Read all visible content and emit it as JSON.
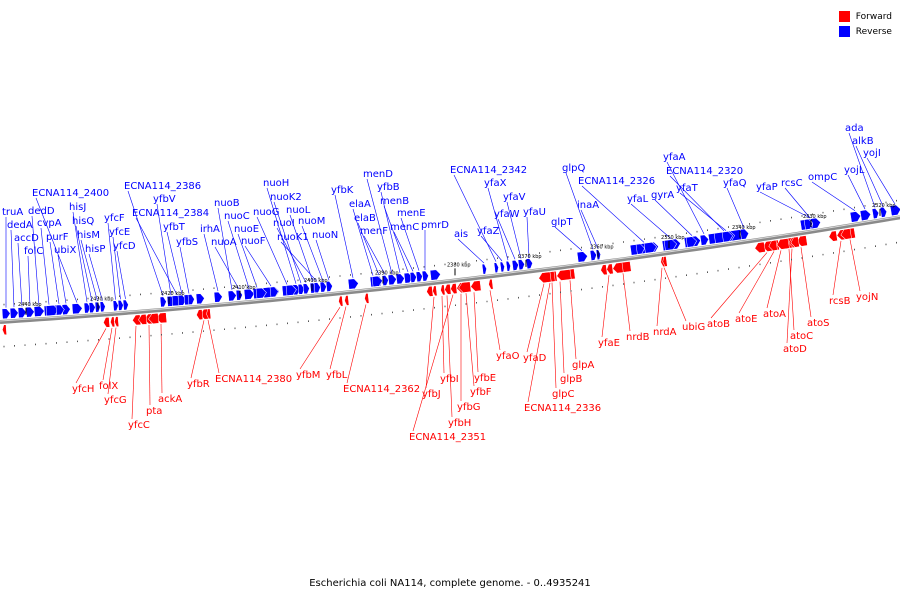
{
  "legend": {
    "forward_label": "Forward",
    "reverse_label": "Reverse",
    "forward_color": "#ff0000",
    "reverse_color": "#0000ff"
  },
  "caption": "Escherichia coli NA114, complete genome. - 0..4935241",
  "ticks": [
    "2440 kbp",
    "2430 kbp",
    "2420 kbp",
    "2410 kbp",
    "2400 kbp",
    "2390 kbp",
    "2380 kbp",
    "2370 kbp",
    "2360 kbp",
    "2350 kbp",
    "2340 kbp",
    "2330 kbp",
    "2320 kbp"
  ],
  "reverse_genes": [
    "truA",
    "dedA",
    "accD",
    "folC",
    "dedD",
    "cvpA",
    "purF",
    "ubiX",
    "ECNA114_2400",
    "hisJ",
    "hisQ",
    "hisM",
    "hisP",
    "yfcF",
    "yfcE",
    "yfcD",
    "ECNA114_2386",
    "yfbV",
    "ECNA114_2384",
    "yfbT",
    "yfbS",
    "irhA",
    "nuoB",
    "nuoA",
    "nuoC",
    "nuoE",
    "nuoF",
    "nuoG",
    "nuoH",
    "nuoK2",
    "nuoI",
    "nuoL",
    "nuoK1",
    "nuoM",
    "nuoN",
    "yfbK",
    "elaA",
    "elaB",
    "menF",
    "menD",
    "yfbB",
    "menB",
    "menC",
    "menE",
    "pmrD",
    "ais",
    "ECNA114_2342",
    "yfaZ",
    "yfaX",
    "yfaW",
    "yfaV",
    "yfaU",
    "glpT",
    "glpQ",
    "inaA",
    "ECNA114_2326",
    "yfaL",
    "gyrA",
    "yfaA",
    "yfaT",
    "ECNA114_2320",
    "yfaQ",
    "yfaP",
    "rcsC",
    "ompC",
    "yojL",
    "ada",
    "alkB",
    "yojI"
  ],
  "forward_genes": [
    "yfcH",
    "folX",
    "yfcG",
    "yfcC",
    "pta",
    "ackA",
    "yfbR",
    "ECNA114_2380",
    "yfbM",
    "yfbL",
    "ECNA114_2362",
    "yfbJ",
    "yfbI",
    "yfbH",
    "ECNA114_2351",
    "yfbG",
    "yfbF",
    "yfbE",
    "yfaO",
    "yfaD",
    "glpC",
    "glpB",
    "ECNA114_2336",
    "glpA",
    "yfaE",
    "nrdB",
    "nrdA",
    "ubiG",
    "atoB",
    "atoE",
    "atoA",
    "atoC",
    "atoD",
    "atoS",
    "rcsB",
    "yojN"
  ]
}
